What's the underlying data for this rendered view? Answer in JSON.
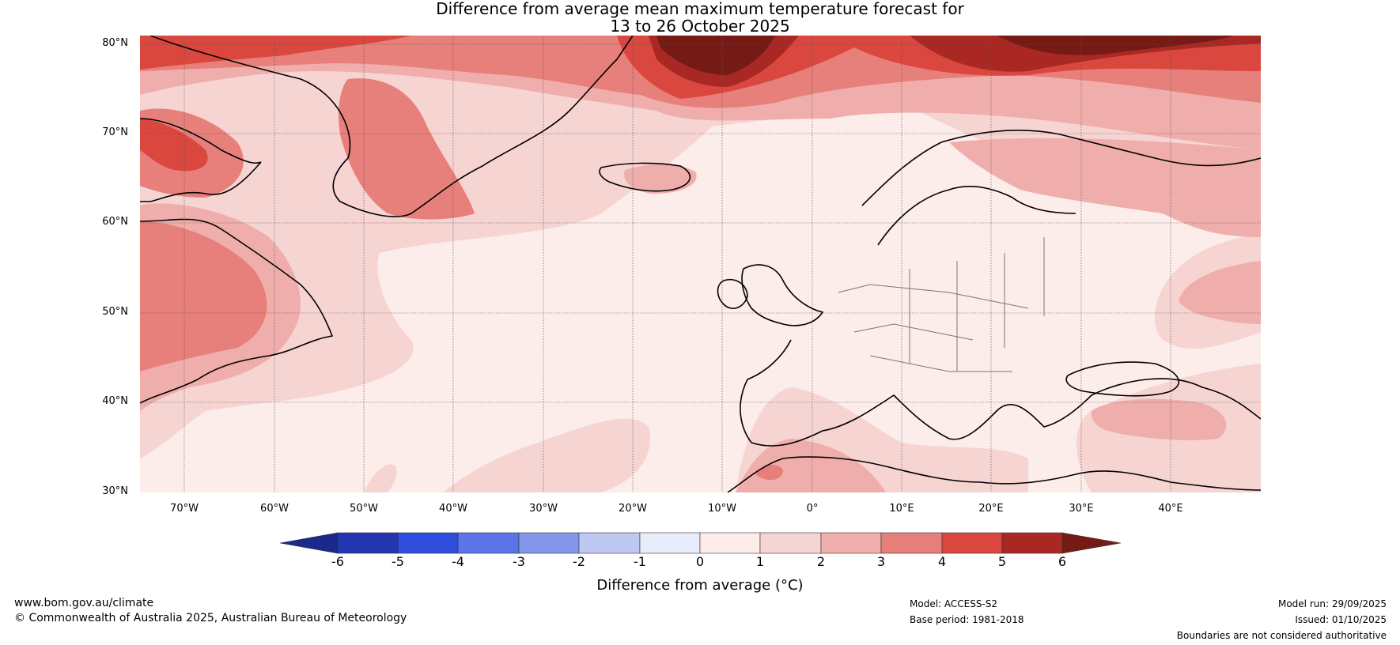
{
  "title_line1": "Difference from average mean maximum temperature forecast for",
  "title_line2": "13 to 26 October 2025",
  "map": {
    "lat_labels": [
      "80°N",
      "70°N",
      "60°N",
      "50°N",
      "40°N",
      "30°N"
    ],
    "lon_labels": [
      "70°W",
      "60°W",
      "50°W",
      "40°W",
      "30°W",
      "20°W",
      "10°W",
      "0°",
      "10°E",
      "20°E",
      "30°E",
      "40°E"
    ],
    "lat_range": [
      30,
      81
    ],
    "lon_range": [
      -75,
      50
    ]
  },
  "colorbar": {
    "ticks": [
      "-6",
      "-5",
      "-4",
      "-3",
      "-2",
      "-1",
      "0",
      "1",
      "2",
      "3",
      "4",
      "5",
      "6"
    ],
    "colors": [
      "#1a2a8a",
      "#2237b0",
      "#2e4ddd",
      "#5b74e6",
      "#8397eb",
      "#bfc8f3",
      "#e9ecfb",
      "#fcecea",
      "#f6d4d2",
      "#efaeab",
      "#e77f7a",
      "#d9473f",
      "#a92823",
      "#761a16"
    ],
    "label": "Difference from average (°C)"
  },
  "footer": {
    "website": "www.bom.gov.au/climate",
    "copyright": "© Commonwealth of Australia 2025, Australian Bureau of Meteorology",
    "model": "Model: ACCESS-S2",
    "base_period": "Base period: 1981-2018",
    "model_run": "Model run: 29/09/2025",
    "issued": "Issued: 01/10/2025",
    "disclaimer": "Boundaries are not considered authoritative"
  },
  "colors": {
    "land_outline": "#000000",
    "border": "#777777",
    "gridline": "#555555"
  }
}
